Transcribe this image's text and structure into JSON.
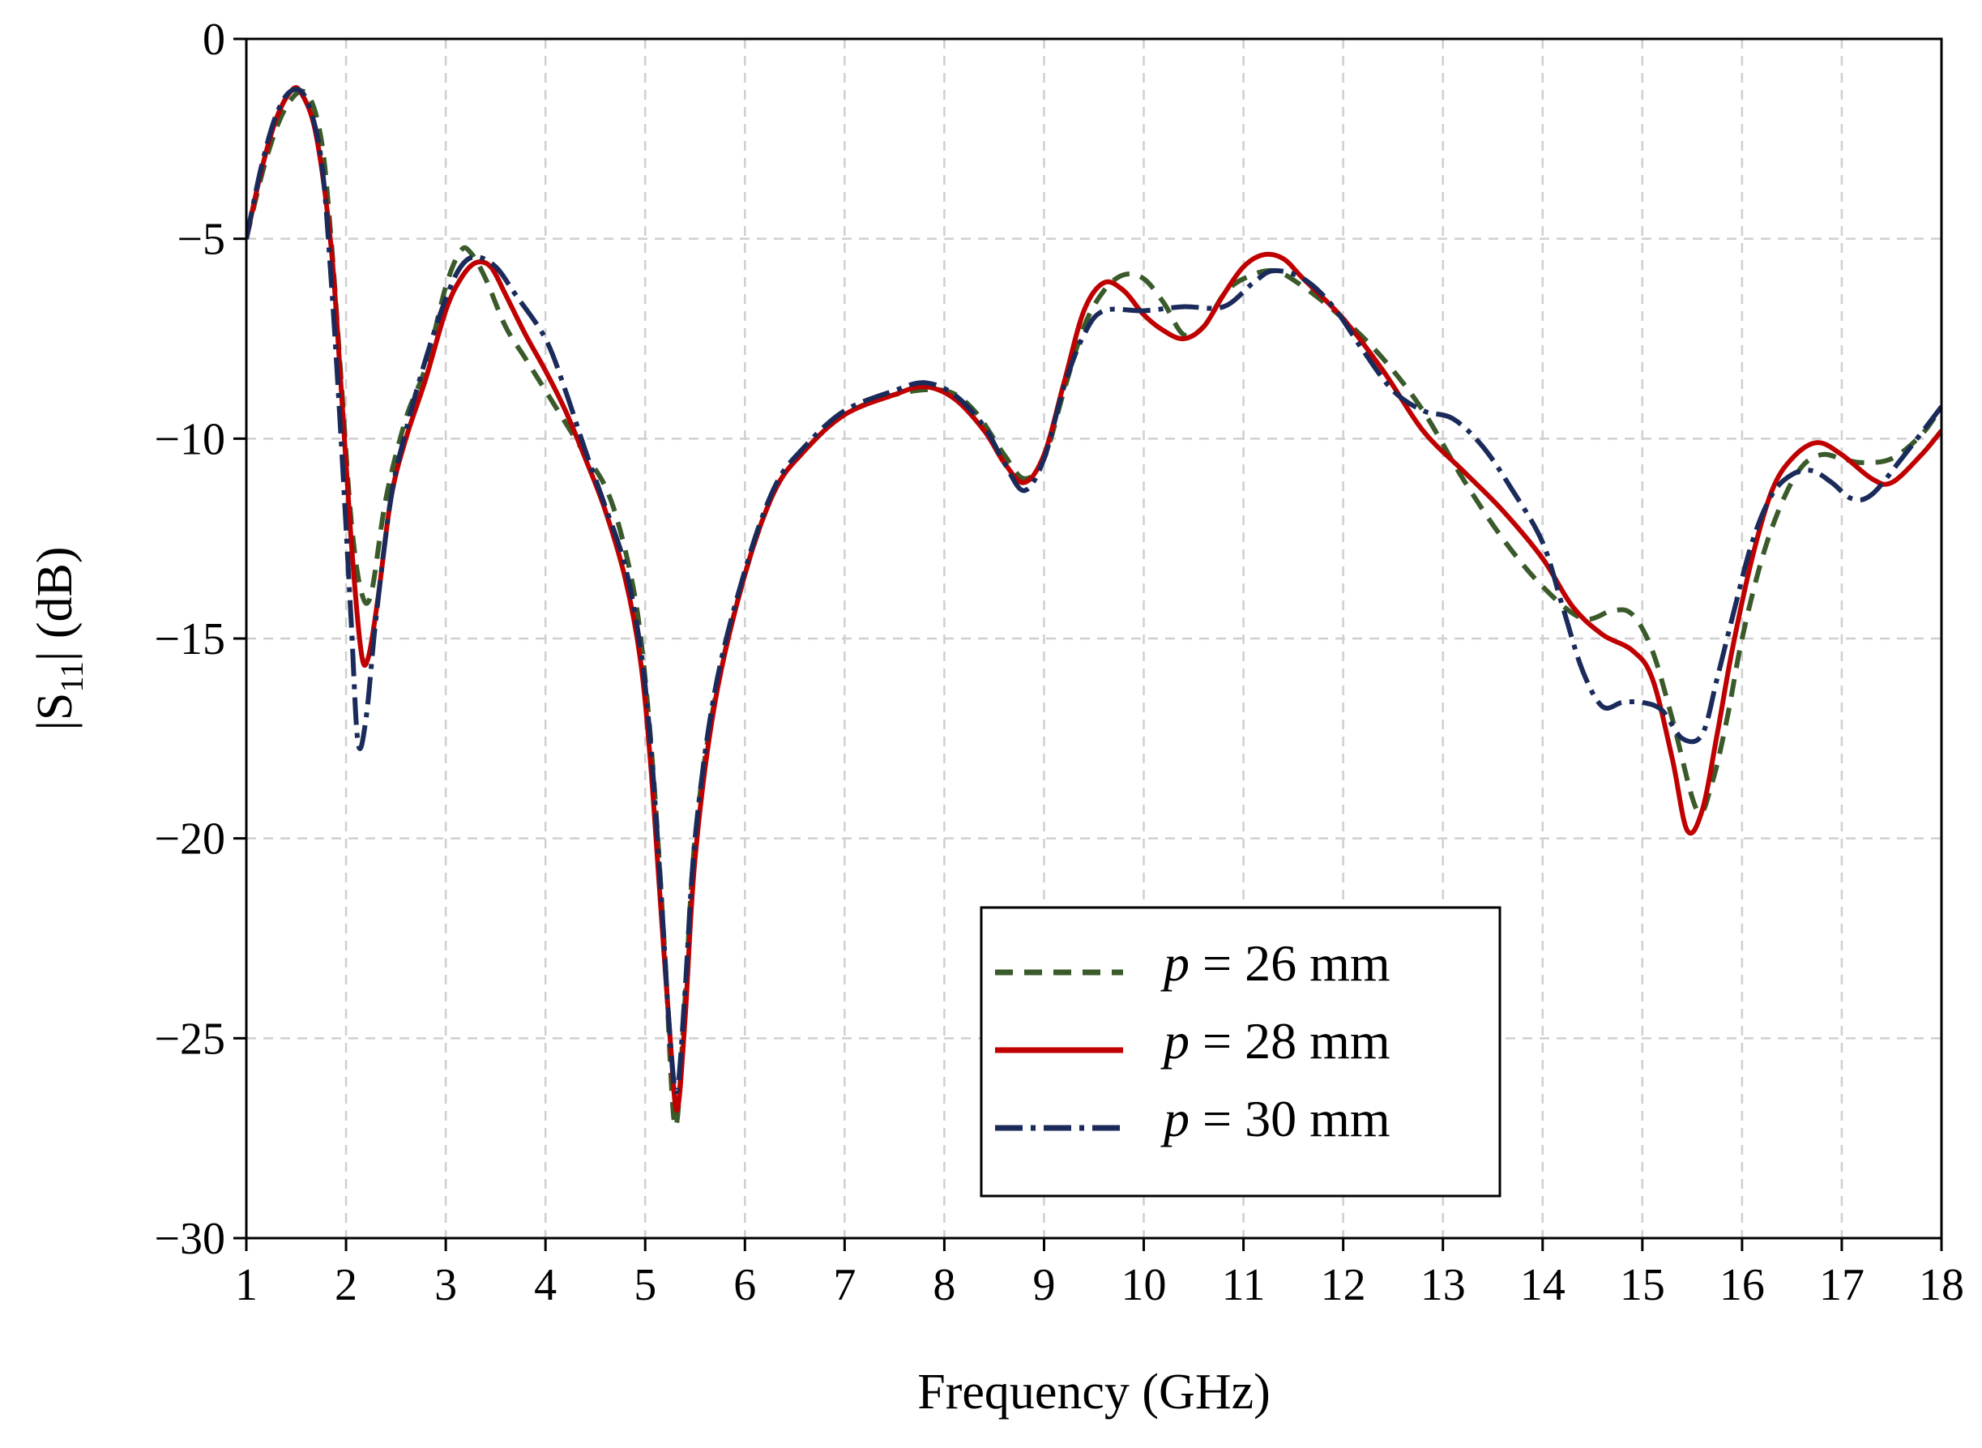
{
  "chart_data": {
    "type": "line",
    "xlabel": "Frequency (GHz)",
    "ylabel_prefix": "|S",
    "ylabel_sub": "11",
    "ylabel_suffix": "| (dB)",
    "xlim": [
      1,
      18
    ],
    "ylim": [
      -30,
      0
    ],
    "x_ticks": [
      1,
      2,
      3,
      4,
      5,
      6,
      7,
      8,
      9,
      10,
      11,
      12,
      13,
      14,
      15,
      16,
      17,
      18
    ],
    "y_ticks": [
      0,
      -5,
      -10,
      -15,
      -20,
      -25,
      -30
    ],
    "x_tick_labels": [
      "1",
      "2",
      "3",
      "4",
      "5",
      "6",
      "7",
      "8",
      "9",
      "10",
      "11",
      "12",
      "13",
      "14",
      "15",
      "16",
      "17",
      "18"
    ],
    "y_tick_labels": [
      "0",
      "−5",
      "−10",
      "−15",
      "−20",
      "−25",
      "−30"
    ],
    "grid": true,
    "legend_position": "center-bottom",
    "series": [
      {
        "name_var": "p",
        "name_rest": " = 26 mm",
        "color": "#3a5a2a",
        "dash": "22 14",
        "points": [
          [
            1.0,
            -5.0
          ],
          [
            1.2,
            -3.0
          ],
          [
            1.4,
            -1.7
          ],
          [
            1.6,
            -1.35
          ],
          [
            1.75,
            -2.5
          ],
          [
            1.85,
            -5.0
          ],
          [
            1.95,
            -8.5
          ],
          [
            2.05,
            -12.0
          ],
          [
            2.15,
            -13.8
          ],
          [
            2.25,
            -13.9
          ],
          [
            2.4,
            -11.5
          ],
          [
            2.6,
            -9.5
          ],
          [
            2.8,
            -8.2
          ],
          [
            3.0,
            -6.2
          ],
          [
            3.15,
            -5.3
          ],
          [
            3.25,
            -5.35
          ],
          [
            3.4,
            -6.0
          ],
          [
            3.6,
            -7.2
          ],
          [
            3.8,
            -8.0
          ],
          [
            4.0,
            -8.8
          ],
          [
            4.2,
            -9.6
          ],
          [
            4.4,
            -10.4
          ],
          [
            4.6,
            -11.2
          ],
          [
            4.75,
            -12.3
          ],
          [
            4.9,
            -14.0
          ],
          [
            5.0,
            -16.0
          ],
          [
            5.1,
            -19.0
          ],
          [
            5.2,
            -23.0
          ],
          [
            5.3,
            -27.2
          ],
          [
            5.4,
            -24.0
          ],
          [
            5.5,
            -20.0
          ],
          [
            5.7,
            -16.5
          ],
          [
            6.0,
            -13.4
          ],
          [
            6.3,
            -11.3
          ],
          [
            6.6,
            -10.3
          ],
          [
            7.0,
            -9.4
          ],
          [
            7.5,
            -8.9
          ],
          [
            8.0,
            -8.8
          ],
          [
            8.3,
            -9.3
          ],
          [
            8.6,
            -10.4
          ],
          [
            8.8,
            -11.0
          ],
          [
            9.0,
            -10.5
          ],
          [
            9.2,
            -8.8
          ],
          [
            9.4,
            -7.2
          ],
          [
            9.6,
            -6.3
          ],
          [
            9.8,
            -5.9
          ],
          [
            10.0,
            -6.0
          ],
          [
            10.2,
            -6.6
          ],
          [
            10.4,
            -7.4
          ],
          [
            10.6,
            -7.2
          ],
          [
            10.8,
            -6.4
          ],
          [
            11.0,
            -6.0
          ],
          [
            11.3,
            -5.8
          ],
          [
            11.6,
            -6.2
          ],
          [
            12.0,
            -7.0
          ],
          [
            12.4,
            -8.0
          ],
          [
            12.8,
            -9.3
          ],
          [
            13.2,
            -11.0
          ],
          [
            13.6,
            -12.5
          ],
          [
            14.0,
            -13.7
          ],
          [
            14.4,
            -14.5
          ],
          [
            14.7,
            -14.3
          ],
          [
            14.9,
            -14.4
          ],
          [
            15.1,
            -15.3
          ],
          [
            15.3,
            -17.0
          ],
          [
            15.55,
            -19.3
          ],
          [
            15.7,
            -18.6
          ],
          [
            15.85,
            -17.0
          ],
          [
            16.0,
            -15.0
          ],
          [
            16.2,
            -13.0
          ],
          [
            16.4,
            -11.6
          ],
          [
            16.6,
            -10.7
          ],
          [
            16.8,
            -10.4
          ],
          [
            17.0,
            -10.5
          ],
          [
            17.2,
            -10.6
          ],
          [
            17.5,
            -10.5
          ],
          [
            17.8,
            -9.9
          ],
          [
            18.0,
            -9.2
          ]
        ]
      },
      {
        "name_var": "p",
        "name_rest": " = 28 mm",
        "color": "#c00000",
        "dash": "",
        "points": [
          [
            1.0,
            -5.0
          ],
          [
            1.15,
            -3.3
          ],
          [
            1.3,
            -2.0
          ],
          [
            1.45,
            -1.3
          ],
          [
            1.55,
            -1.35
          ],
          [
            1.7,
            -2.4
          ],
          [
            1.85,
            -5.2
          ],
          [
            1.95,
            -8.7
          ],
          [
            2.05,
            -12.5
          ],
          [
            2.15,
            -15.3
          ],
          [
            2.22,
            -15.5
          ],
          [
            2.32,
            -14.0
          ],
          [
            2.45,
            -11.5
          ],
          [
            2.6,
            -10.0
          ],
          [
            2.8,
            -8.5
          ],
          [
            3.0,
            -6.8
          ],
          [
            3.15,
            -6.0
          ],
          [
            3.3,
            -5.6
          ],
          [
            3.45,
            -5.7
          ],
          [
            3.6,
            -6.4
          ],
          [
            3.8,
            -7.4
          ],
          [
            4.0,
            -8.3
          ],
          [
            4.2,
            -9.3
          ],
          [
            4.4,
            -10.5
          ],
          [
            4.6,
            -11.8
          ],
          [
            4.8,
            -13.5
          ],
          [
            4.95,
            -15.5
          ],
          [
            5.05,
            -18.0
          ],
          [
            5.15,
            -21.5
          ],
          [
            5.25,
            -25.0
          ],
          [
            5.32,
            -26.8
          ],
          [
            5.4,
            -24.5
          ],
          [
            5.5,
            -20.5
          ],
          [
            5.7,
            -16.6
          ],
          [
            6.0,
            -13.4
          ],
          [
            6.3,
            -11.3
          ],
          [
            6.6,
            -10.3
          ],
          [
            7.0,
            -9.4
          ],
          [
            7.5,
            -8.9
          ],
          [
            7.8,
            -8.7
          ],
          [
            8.1,
            -9.0
          ],
          [
            8.4,
            -9.8
          ],
          [
            8.6,
            -10.6
          ],
          [
            8.8,
            -11.1
          ],
          [
            9.0,
            -10.4
          ],
          [
            9.2,
            -8.6
          ],
          [
            9.4,
            -6.8
          ],
          [
            9.6,
            -6.1
          ],
          [
            9.8,
            -6.3
          ],
          [
            10.0,
            -6.9
          ],
          [
            10.2,
            -7.3
          ],
          [
            10.4,
            -7.5
          ],
          [
            10.6,
            -7.2
          ],
          [
            10.8,
            -6.4
          ],
          [
            11.0,
            -5.7
          ],
          [
            11.2,
            -5.4
          ],
          [
            11.4,
            -5.5
          ],
          [
            11.6,
            -6.0
          ],
          [
            12.0,
            -7.0
          ],
          [
            12.4,
            -8.3
          ],
          [
            12.8,
            -9.8
          ],
          [
            13.2,
            -10.8
          ],
          [
            13.6,
            -11.8
          ],
          [
            14.0,
            -13.0
          ],
          [
            14.3,
            -14.2
          ],
          [
            14.6,
            -14.9
          ],
          [
            14.9,
            -15.3
          ],
          [
            15.1,
            -16.0
          ],
          [
            15.3,
            -18.0
          ],
          [
            15.45,
            -19.8
          ],
          [
            15.6,
            -19.3
          ],
          [
            15.75,
            -17.4
          ],
          [
            15.9,
            -15.3
          ],
          [
            16.1,
            -13.0
          ],
          [
            16.3,
            -11.3
          ],
          [
            16.5,
            -10.5
          ],
          [
            16.75,
            -10.1
          ],
          [
            17.0,
            -10.4
          ],
          [
            17.3,
            -11.0
          ],
          [
            17.5,
            -11.1
          ],
          [
            17.8,
            -10.4
          ],
          [
            18.0,
            -9.8
          ]
        ]
      },
      {
        "name_var": "p",
        "name_rest": " = 30 mm",
        "color": "#1a2a5a",
        "dash": "34 10 6 10",
        "points": [
          [
            1.0,
            -5.0
          ],
          [
            1.15,
            -3.2
          ],
          [
            1.3,
            -1.9
          ],
          [
            1.45,
            -1.3
          ],
          [
            1.6,
            -1.5
          ],
          [
            1.75,
            -3.0
          ],
          [
            1.85,
            -6.0
          ],
          [
            1.95,
            -10.0
          ],
          [
            2.05,
            -14.5
          ],
          [
            2.12,
            -17.6
          ],
          [
            2.2,
            -17.0
          ],
          [
            2.3,
            -14.5
          ],
          [
            2.45,
            -11.5
          ],
          [
            2.6,
            -9.8
          ],
          [
            2.8,
            -8.0
          ],
          [
            3.0,
            -6.5
          ],
          [
            3.15,
            -5.7
          ],
          [
            3.3,
            -5.45
          ],
          [
            3.5,
            -5.7
          ],
          [
            3.7,
            -6.4
          ],
          [
            4.0,
            -7.5
          ],
          [
            4.2,
            -8.8
          ],
          [
            4.4,
            -10.3
          ],
          [
            4.6,
            -11.7
          ],
          [
            4.8,
            -13.2
          ],
          [
            4.95,
            -15.2
          ],
          [
            5.05,
            -17.5
          ],
          [
            5.15,
            -21.0
          ],
          [
            5.25,
            -25.0
          ],
          [
            5.32,
            -26.3
          ],
          [
            5.4,
            -23.8
          ],
          [
            5.5,
            -20.0
          ],
          [
            5.7,
            -16.3
          ],
          [
            6.0,
            -13.3
          ],
          [
            6.3,
            -11.2
          ],
          [
            6.6,
            -10.2
          ],
          [
            7.0,
            -9.3
          ],
          [
            7.5,
            -8.8
          ],
          [
            7.8,
            -8.6
          ],
          [
            8.1,
            -8.9
          ],
          [
            8.4,
            -9.7
          ],
          [
            8.6,
            -10.6
          ],
          [
            8.8,
            -11.3
          ],
          [
            9.0,
            -10.5
          ],
          [
            9.2,
            -8.7
          ],
          [
            9.4,
            -7.4
          ],
          [
            9.6,
            -6.8
          ],
          [
            10.0,
            -6.8
          ],
          [
            10.4,
            -6.7
          ],
          [
            10.8,
            -6.7
          ],
          [
            11.1,
            -6.1
          ],
          [
            11.3,
            -5.8
          ],
          [
            11.6,
            -6.0
          ],
          [
            11.9,
            -6.7
          ],
          [
            12.2,
            -7.8
          ],
          [
            12.5,
            -8.8
          ],
          [
            12.8,
            -9.3
          ],
          [
            13.1,
            -9.5
          ],
          [
            13.4,
            -10.2
          ],
          [
            13.7,
            -11.3
          ],
          [
            14.0,
            -12.6
          ],
          [
            14.2,
            -14.2
          ],
          [
            14.4,
            -15.8
          ],
          [
            14.6,
            -16.7
          ],
          [
            14.8,
            -16.6
          ],
          [
            15.0,
            -16.6
          ],
          [
            15.2,
            -16.8
          ],
          [
            15.4,
            -17.5
          ],
          [
            15.6,
            -17.4
          ],
          [
            15.75,
            -16.0
          ],
          [
            15.9,
            -14.5
          ],
          [
            16.1,
            -12.6
          ],
          [
            16.3,
            -11.4
          ],
          [
            16.5,
            -10.9
          ],
          [
            16.7,
            -10.8
          ],
          [
            16.9,
            -11.1
          ],
          [
            17.1,
            -11.5
          ],
          [
            17.3,
            -11.4
          ],
          [
            17.6,
            -10.5
          ],
          [
            18.0,
            -9.2
          ]
        ]
      }
    ]
  }
}
